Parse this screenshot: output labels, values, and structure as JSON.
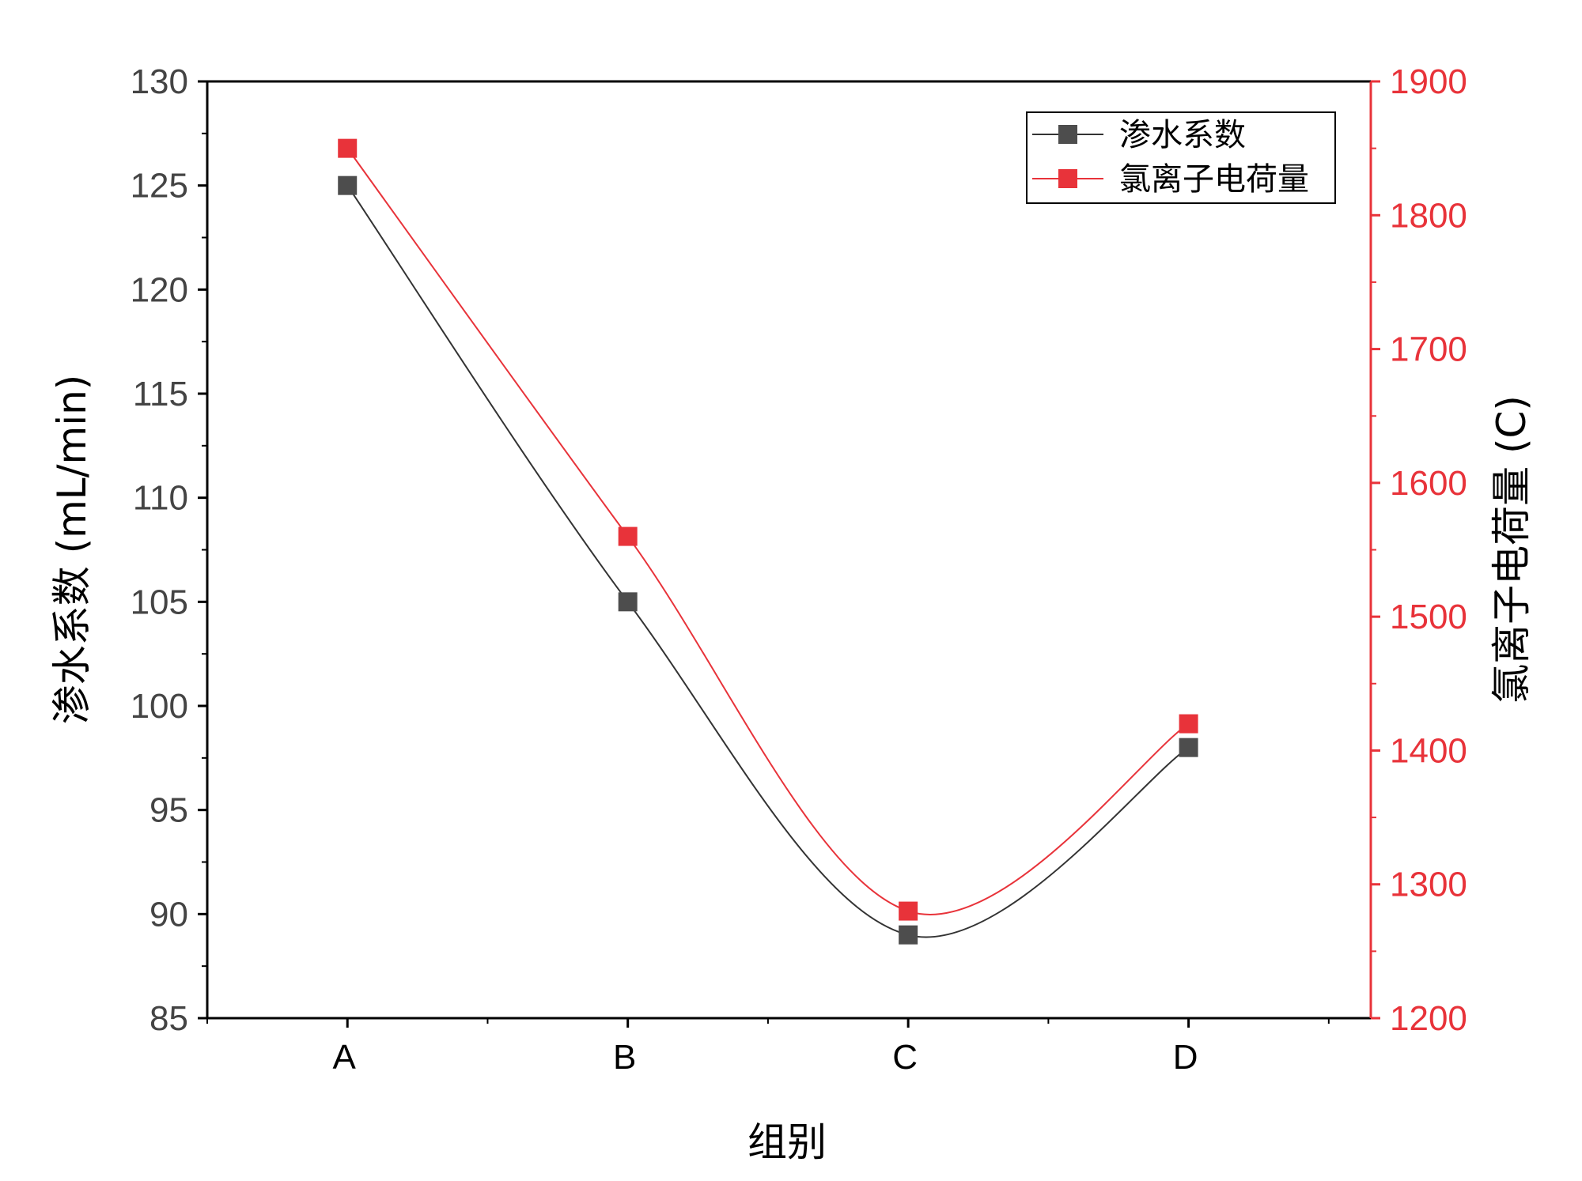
{
  "chart_data": {
    "type": "line",
    "categories": [
      "A",
      "B",
      "C",
      "D"
    ],
    "xlabel": "组别",
    "ylabel_left": "渗水系数 (mL/min)",
    "ylabel_right": "氯离子电荷量 (C)",
    "ylim_left": [
      85,
      130
    ],
    "yticks_left": [
      85,
      90,
      95,
      100,
      105,
      110,
      115,
      120,
      125,
      130
    ],
    "ylim_right": [
      1200,
      1900
    ],
    "yticks_right": [
      1200,
      1300,
      1400,
      1500,
      1600,
      1700,
      1800,
      1900
    ],
    "grid": false,
    "legend_position": "top-right",
    "smooth": true,
    "series": [
      {
        "name": "渗水系数",
        "axis": "left",
        "color": "#4d4d4d",
        "line_color": "#333333",
        "marker": "square",
        "values": [
          125,
          105,
          89,
          98
        ]
      },
      {
        "name": "氯离子电荷量",
        "axis": "right",
        "color": "#e8333a",
        "line_color": "#e8333a",
        "marker": "square",
        "values": [
          1850,
          1560,
          1280,
          1420
        ]
      }
    ],
    "colors": {
      "axis": "#000000",
      "right_axis": "#e8333a",
      "tick_label": "#444444"
    }
  }
}
